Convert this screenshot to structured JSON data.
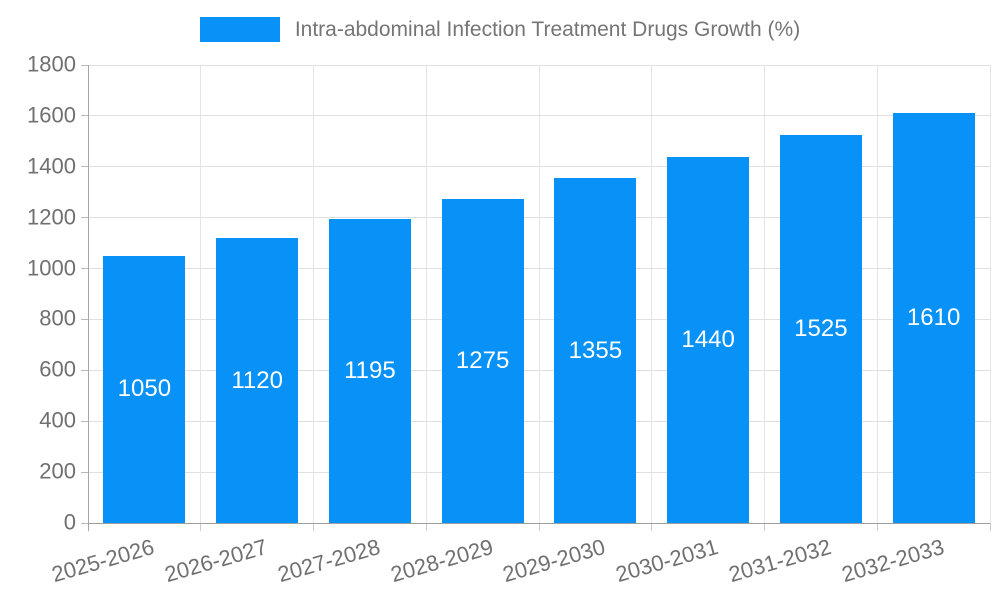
{
  "legend": {
    "title": "Intra-abdominal Infection Treatment Drugs Growth (%)"
  },
  "colors": {
    "bar": "#0892f8",
    "grid": "#e0e0e0",
    "axis": "#9e9e9e",
    "tick_label": "#707070",
    "legend_text": "#757575",
    "value_label": "#ffffff"
  },
  "chart_data": {
    "type": "bar",
    "title": "Intra-abdominal Infection Treatment Drugs Growth (%)",
    "categories": [
      "2025-2026",
      "2026-2027",
      "2027-2028",
      "2028-2029",
      "2029-2030",
      "2030-2031",
      "2031-2032",
      "2032-2033"
    ],
    "values": [
      1050,
      1120,
      1195,
      1275,
      1355,
      1440,
      1525,
      1610
    ],
    "xlabel": "",
    "ylabel": "",
    "ylim": [
      0,
      1800
    ],
    "yticks": [
      0,
      200,
      400,
      600,
      800,
      1000,
      1200,
      1400,
      1600,
      1800
    ],
    "grid": true,
    "grid_vertical": true,
    "legend_position": "top-center",
    "value_labels": "inside-center",
    "x_label_rotation_deg": -16
  }
}
